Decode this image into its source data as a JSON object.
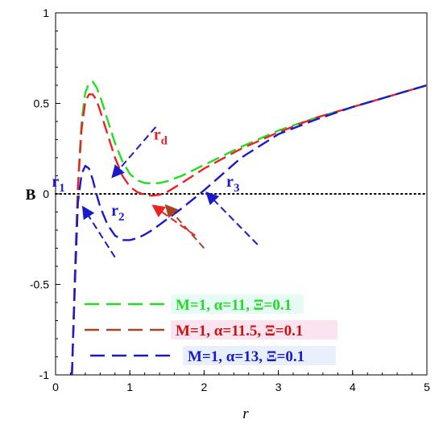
{
  "chart_data": {
    "type": "line",
    "xlabel": "r",
    "ylabel": "B",
    "xlim": [
      0,
      5
    ],
    "ylim": [
      -1,
      1
    ],
    "x_ticks": [
      "0",
      "1",
      "2",
      "3",
      "4",
      "5"
    ],
    "y_ticks": [
      "-1",
      "-0.5",
      "0",
      "0.5",
      "1"
    ],
    "x_tick_values": [
      0,
      1,
      2,
      3,
      4,
      5
    ],
    "y_tick_values": [
      -1,
      -0.5,
      0,
      0.5,
      1
    ],
    "reference_line": {
      "y": 0,
      "style": "dotted"
    },
    "series": [
      {
        "name": "M=1, α=11, Ξ=0.1",
        "color": "#22dd22",
        "x": [
          0.22,
          0.26,
          0.3,
          0.35,
          0.4,
          0.45,
          0.5,
          0.55,
          0.6,
          0.7,
          0.8,
          0.9,
          1.0,
          1.1,
          1.2,
          1.3,
          1.4,
          1.5,
          1.7,
          2.0,
          2.5,
          3.0,
          3.5,
          4.0,
          4.5,
          5.0
        ],
        "y": [
          -1.0,
          -0.45,
          0.05,
          0.4,
          0.56,
          0.61,
          0.62,
          0.59,
          0.54,
          0.41,
          0.28,
          0.18,
          0.11,
          0.075,
          0.06,
          0.058,
          0.06,
          0.07,
          0.1,
          0.16,
          0.26,
          0.35,
          0.42,
          0.48,
          0.54,
          0.6
        ]
      },
      {
        "name": "M=1, α=11.5, Ξ=0.1",
        "color": "#ee2222",
        "x": [
          0.22,
          0.26,
          0.3,
          0.35,
          0.4,
          0.45,
          0.5,
          0.55,
          0.6,
          0.7,
          0.8,
          0.9,
          1.0,
          1.1,
          1.2,
          1.3,
          1.4,
          1.5,
          1.7,
          2.0,
          2.5,
          3.0,
          3.5,
          4.0,
          4.5,
          5.0
        ],
        "y": [
          -1.0,
          -0.45,
          0.03,
          0.36,
          0.51,
          0.55,
          0.55,
          0.52,
          0.46,
          0.33,
          0.2,
          0.1,
          0.04,
          0.01,
          -0.005,
          -0.01,
          -0.005,
          0.01,
          0.06,
          0.14,
          0.25,
          0.34,
          0.42,
          0.48,
          0.54,
          0.6
        ]
      },
      {
        "name": "M=1, α=13, Ξ=0.1",
        "color": "#1a1acc",
        "x": [
          0.22,
          0.26,
          0.3,
          0.35,
          0.4,
          0.45,
          0.5,
          0.55,
          0.6,
          0.7,
          0.8,
          0.9,
          1.0,
          1.1,
          1.2,
          1.3,
          1.4,
          1.5,
          1.7,
          2.0,
          2.5,
          3.0,
          3.5,
          4.0,
          4.5,
          5.0
        ],
        "y": [
          -1.0,
          -0.5,
          -0.05,
          0.11,
          0.155,
          0.14,
          0.08,
          0.0,
          -0.07,
          -0.17,
          -0.23,
          -0.255,
          -0.255,
          -0.245,
          -0.225,
          -0.2,
          -0.17,
          -0.14,
          -0.08,
          0.02,
          0.2,
          0.33,
          0.41,
          0.48,
          0.54,
          0.6
        ]
      }
    ],
    "annotations": [
      {
        "text": "r",
        "sub": "1",
        "color": "#1a1acc",
        "x": -0.05,
        "y": 0.04
      },
      {
        "text": "r",
        "sub": "2",
        "color": "#1a1acc",
        "x": 0.75,
        "y": -0.12
      },
      {
        "text": "r",
        "sub": "d",
        "color": "#ee2222",
        "x": 1.32,
        "y": 0.3
      },
      {
        "text": "r",
        "sub": "3",
        "color": "#1a1acc",
        "x": 2.3,
        "y": 0.04
      }
    ],
    "arrows": [
      {
        "color": "#1a1acc",
        "x1": 1.35,
        "y1": 0.37,
        "x2": 0.78,
        "y2": 0.1
      },
      {
        "color": "#1a1acc",
        "x1": 0.8,
        "y1": -0.35,
        "x2": 0.38,
        "y2": -0.08
      },
      {
        "color": "#a84422",
        "x1": 2.0,
        "y1": -0.3,
        "x2": 1.5,
        "y2": -0.07
      },
      {
        "color": "#1a1acc",
        "x1": 2.72,
        "y1": -0.28,
        "x2": 2.05,
        "y2": 0.0
      },
      {
        "color": "#ee2222",
        "x1": 1.88,
        "y1": -0.23,
        "x2": 1.33,
        "y2": -0.07
      }
    ],
    "legend": {
      "placement": "bottom-left",
      "entries": [
        {
          "label": "M=1, α=11, Ξ=0.1",
          "line_color": "#22dd22",
          "text_color": "#22dd22",
          "bg": "#e6fbf6"
        },
        {
          "label": "M=1, α=11.5, Ξ=0.1",
          "line_color": "#a84422",
          "text_color": "#cc1111",
          "bg": "#fbe4ef"
        },
        {
          "label": "M=1, α=13, Ξ=0.1",
          "line_color": "#1a1acc",
          "text_color": "#1a1acc",
          "bg": "#e8f1fb"
        }
      ]
    },
    "grid": false
  }
}
